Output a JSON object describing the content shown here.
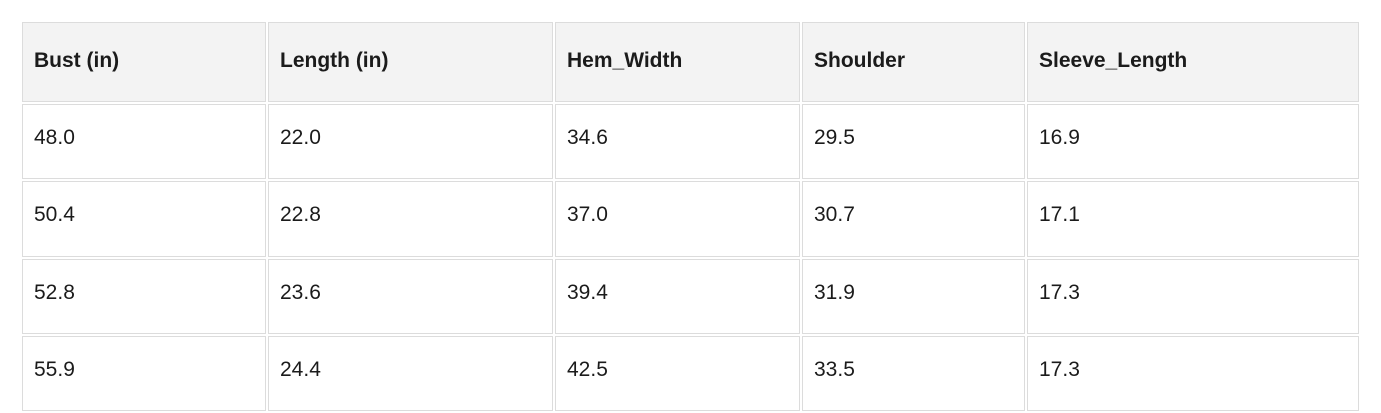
{
  "chart_data": {
    "type": "table",
    "columns": [
      "Bust (in)",
      "Length (in)",
      "Hem_Width",
      "Shoulder",
      "Sleeve_Length"
    ],
    "rows": [
      [
        "48.0",
        "22.0",
        "34.6",
        "29.5",
        "16.9"
      ],
      [
        "50.4",
        "22.8",
        "37.0",
        "30.7",
        "17.1"
      ],
      [
        "52.8",
        "23.6",
        "39.4",
        "31.9",
        "17.3"
      ],
      [
        "55.9",
        "24.4",
        "42.5",
        "33.5",
        "17.3"
      ]
    ]
  },
  "colors": {
    "header_background": "#f3f3f3",
    "cell_border": "#dcdcdc",
    "text": "#1b1b1b",
    "page_background": "#ffffff"
  }
}
